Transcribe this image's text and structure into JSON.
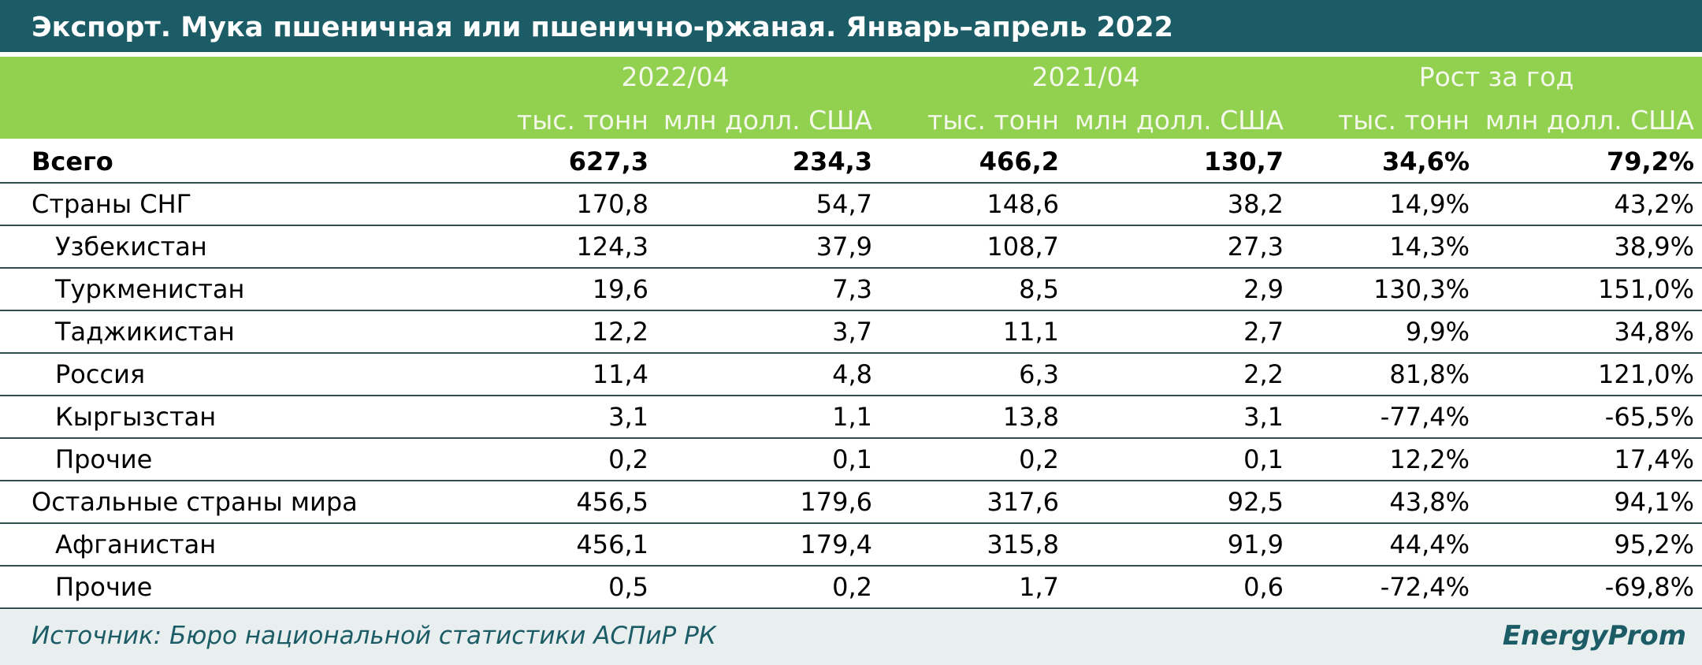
{
  "header": {
    "title": "Экспорт. Мука пшеничная или пшенично-ржаная. Январь–апрель 2022"
  },
  "table": {
    "groups": [
      "2022/04",
      "2021/04",
      "Рост за год"
    ],
    "subheaders": [
      "тыс. тонн",
      "млн долл. США",
      "тыс. тонн",
      "млн долл. США",
      "тыс. тонн",
      "млн долл. США"
    ],
    "total": {
      "label": "Всего",
      "values": [
        "627,3",
        "234,3",
        "466,2",
        "130,7",
        "34,6%",
        "79,2%"
      ]
    },
    "sections": [
      {
        "label": "Страны СНГ",
        "values": [
          "170,8",
          "54,7",
          "148,6",
          "38,2",
          "14,9%",
          "43,2%"
        ],
        "children": [
          {
            "label": "Узбекистан",
            "values": [
              "124,3",
              "37,9",
              "108,7",
              "27,3",
              "14,3%",
              "38,9%"
            ]
          },
          {
            "label": "Туркменистан",
            "values": [
              "19,6",
              "7,3",
              "8,5",
              "2,9",
              "130,3%",
              "151,0%"
            ]
          },
          {
            "label": "Таджикистан",
            "values": [
              "12,2",
              "3,7",
              "11,1",
              "2,7",
              "9,9%",
              "34,8%"
            ]
          },
          {
            "label": "Россия",
            "values": [
              "11,4",
              "4,8",
              "6,3",
              "2,2",
              "81,8%",
              "121,0%"
            ]
          },
          {
            "label": "Кыргызстан",
            "values": [
              "3,1",
              "1,1",
              "13,8",
              "3,1",
              "-77,4%",
              "-65,5%"
            ]
          },
          {
            "label": "Прочие",
            "values": [
              "0,2",
              "0,1",
              "0,2",
              "0,1",
              "12,2%",
              "17,4%"
            ]
          }
        ]
      },
      {
        "label": "Остальные страны мира",
        "values": [
          "456,5",
          "179,6",
          "317,6",
          "92,5",
          "43,8%",
          "94,1%"
        ],
        "children": [
          {
            "label": "Афганистан",
            "values": [
              "456,1",
              "179,4",
              "315,8",
              "91,9",
              "44,4%",
              "95,2%"
            ]
          },
          {
            "label": "Прочие",
            "values": [
              "0,5",
              "0,2",
              "1,7",
              "0,6",
              "-72,4%",
              "-69,8%"
            ]
          }
        ]
      }
    ]
  },
  "footer": {
    "source": "Источник: Бюро национальной статистики АСПиР РК",
    "logo": "EnergyProm"
  }
}
